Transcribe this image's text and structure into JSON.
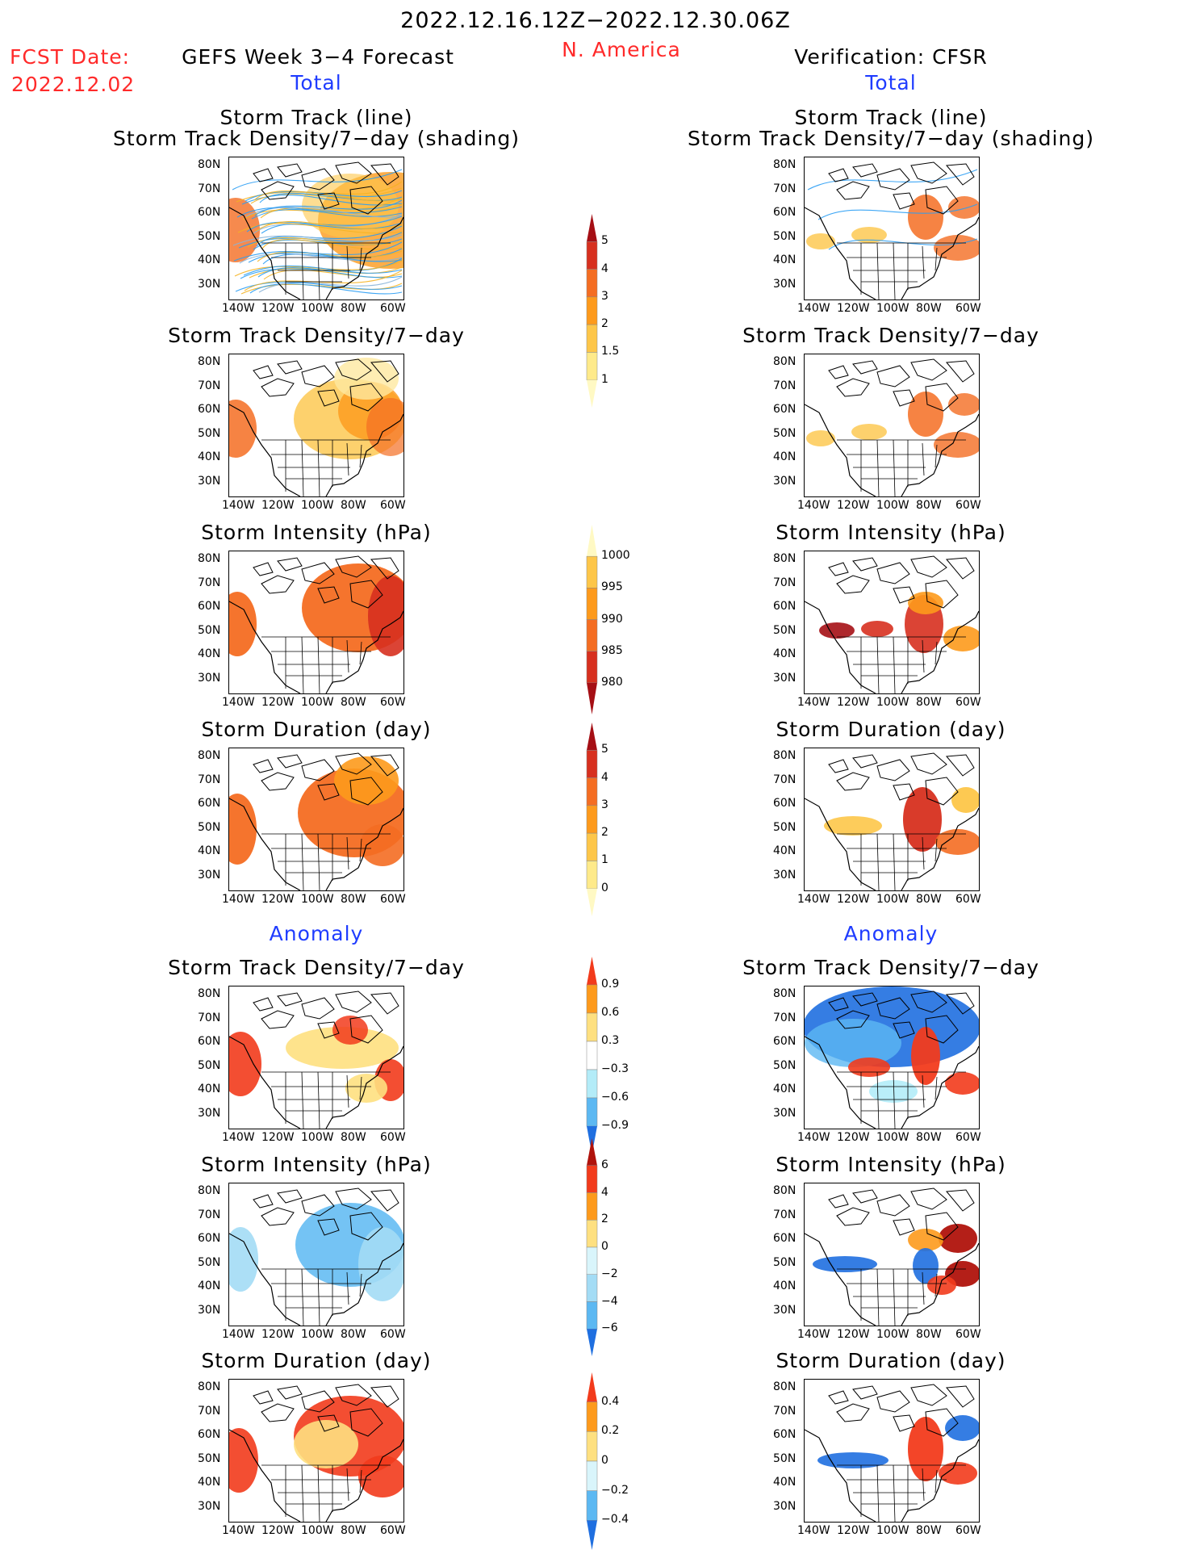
{
  "header": {
    "date_range": "2022.12.16.12Z−2022.12.30.06Z",
    "region": "N. America",
    "fcst_label": "FCST Date:",
    "fcst_date": "2022.12.02",
    "model_title": "GEFS Week 3−4 Forecast",
    "verification_title": "Verification: CFSR",
    "left_section_total": "Total",
    "right_section_total": "Total",
    "left_section_anomaly": "Anomaly",
    "right_section_anomaly": "Anomaly"
  },
  "axes": {
    "lat_ticks": [
      "80N",
      "70N",
      "60N",
      "50N",
      "40N",
      "30N"
    ],
    "lon_ticks": [
      "140W",
      "120W",
      "100W",
      "80W",
      "60W"
    ]
  },
  "panels": {
    "left": [
      {
        "title1": "Storm Track (line)",
        "title2": "Storm Track Density/7−day (shading)"
      },
      {
        "title1": "Storm Track Density/7−day",
        "title2": ""
      },
      {
        "title1": "Storm Intensity (hPa)",
        "title2": ""
      },
      {
        "title1": "Storm Duration (day)",
        "title2": ""
      },
      {
        "title1": "Storm Track Density/7−day",
        "title2": ""
      },
      {
        "title1": "Storm Intensity (hPa)",
        "title2": ""
      },
      {
        "title1": "Storm Duration (day)",
        "title2": ""
      }
    ],
    "right": [
      {
        "title1": "Storm Track (line)",
        "title2": "Storm Track Density/7−day (shading)"
      },
      {
        "title1": "Storm Track Density/7−day",
        "title2": ""
      },
      {
        "title1": "Storm Intensity (hPa)",
        "title2": ""
      },
      {
        "title1": "Storm Duration (day)",
        "title2": ""
      },
      {
        "title1": "Storm Track Density/7−day",
        "title2": ""
      },
      {
        "title1": "Storm Intensity (hPa)",
        "title2": ""
      },
      {
        "title1": "Storm Duration (day)",
        "title2": ""
      }
    ]
  },
  "colorbars": [
    {
      "name": "track-density-total",
      "labels": [
        "5",
        "4",
        "3",
        "2",
        "1.5",
        "1"
      ],
      "colors": [
        "#a50f15",
        "#d7301f",
        "#f46d22",
        "#fd9a1c",
        "#fdc649",
        "#feea8a",
        "#fff9c4"
      ]
    },
    {
      "name": "intensity-total",
      "labels": [
        "1000",
        "995",
        "990",
        "985",
        "980"
      ],
      "colors": [
        "#fff9c4",
        "#fdc649",
        "#fd9a1c",
        "#f46d22",
        "#d7301f",
        "#a50f15"
      ]
    },
    {
      "name": "duration-total",
      "labels": [
        "5",
        "4",
        "3",
        "2",
        "1",
        "0"
      ],
      "colors": [
        "#a50f15",
        "#d7301f",
        "#f46d22",
        "#fd9a1c",
        "#fdc649",
        "#feea8a",
        "#fff9c4"
      ]
    },
    {
      "name": "track-density-anomaly",
      "labels": [
        "0.9",
        "0.6",
        "0.3",
        "−0.3",
        "−0.6",
        "−0.9"
      ],
      "colors": [
        "#f23b1c",
        "#fd9a1c",
        "#fee080",
        "#ffffff",
        "#b3ecf8",
        "#5cb8f2",
        "#1f6fe0"
      ]
    },
    {
      "name": "intensity-anomaly",
      "labels": [
        "6",
        "4",
        "2",
        "0",
        "−2",
        "−4",
        "−6"
      ],
      "colors": [
        "#b0130c",
        "#f23b1c",
        "#fd9a1c",
        "#fee080",
        "#d9f5fb",
        "#a3dcf5",
        "#5cb8f2",
        "#1f6fe0"
      ]
    },
    {
      "name": "duration-anomaly",
      "labels": [
        "0.4",
        "0.2",
        "0",
        "−0.2",
        "−0.4"
      ],
      "colors": [
        "#f23b1c",
        "#fd9a1c",
        "#fee080",
        "#d9f5fb",
        "#5cb8f2",
        "#1f6fe0"
      ]
    }
  ],
  "palette": {
    "red_text": "#ff2a2a",
    "blue_text": "#1f3cff"
  }
}
